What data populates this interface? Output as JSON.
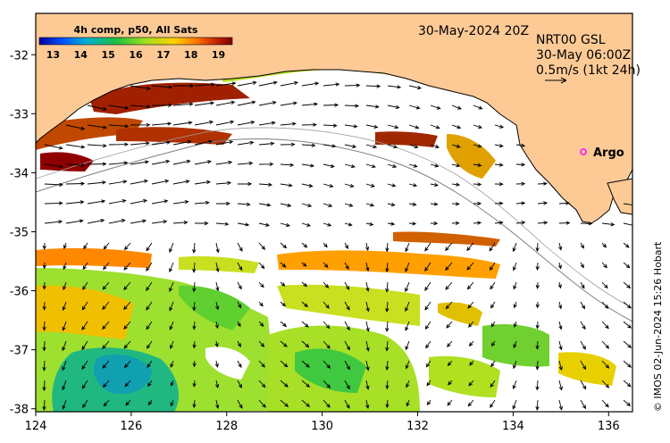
{
  "map": {
    "lon_ticks": [
      "124",
      "126",
      "128",
      "130",
      "132",
      "134",
      "136"
    ],
    "lat_ticks": [
      "-32",
      "-33",
      "-34",
      "-35",
      "-36",
      "-37",
      "-38"
    ],
    "lon_range": [
      124,
      136.5
    ],
    "lat_range": [
      -38.05,
      -31.3
    ]
  },
  "colorbar": {
    "title": "4h comp, p50, All Sats",
    "labels": [
      "13",
      "14",
      "15",
      "16",
      "17",
      "18",
      "19"
    ],
    "range": [
      12.5,
      19.5
    ],
    "colors": [
      "#0000a0",
      "#0050ff",
      "#00b4d0",
      "#20c040",
      "#a0e020",
      "#ffd000",
      "#ff7000",
      "#c02000",
      "#800000"
    ]
  },
  "header": {
    "date": "30-May-2024 20Z",
    "product_line1": "NRT00 GSL",
    "product_line2": "30-May 06:00Z",
    "product_line3": "0.5m/s (1kt 24h)"
  },
  "argo": {
    "label": "Argo",
    "lon": 135.3,
    "lat": -33.6,
    "color": "#ff00ff"
  },
  "credit": "© IMOS 02-Jun-2024 15:26 Hobart",
  "colors": {
    "land": "#fdca96",
    "ocean": "#ffffff",
    "frame": "#000000"
  }
}
